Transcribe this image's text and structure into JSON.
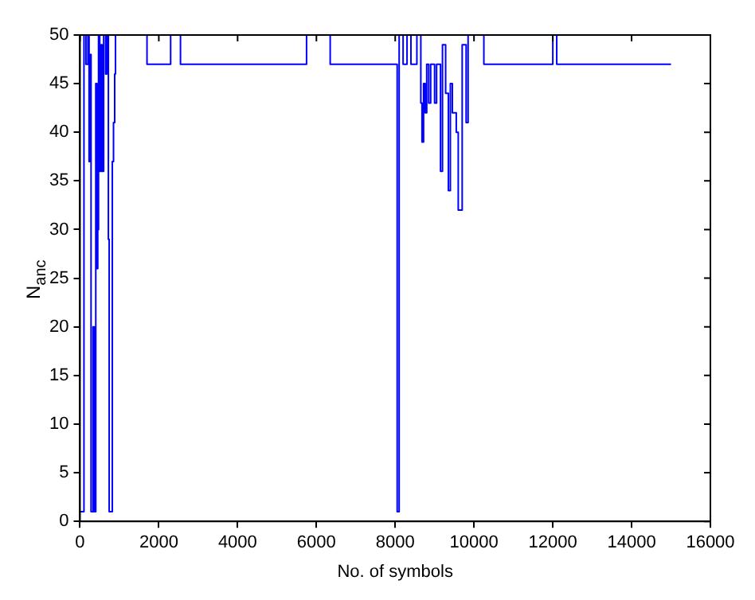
{
  "chart_data": {
    "type": "step",
    "xlabel": "No. of symbols",
    "ylabel": "N$_{anc}$",
    "xlim": [
      0,
      16000
    ],
    "xticks": [
      0,
      2000,
      4000,
      6000,
      8000,
      10000,
      12000,
      14000,
      16000
    ],
    "ylim": [
      0,
      50
    ],
    "yticks": [
      0,
      5,
      10,
      15,
      20,
      25,
      30,
      35,
      40,
      45,
      50
    ],
    "grid": false,
    "legend": false,
    "series": [
      {
        "color": "#0000ff",
        "x": [
          0,
          100,
          150,
          200,
          230,
          260,
          280,
          330,
          360,
          400,
          430,
          450,
          470,
          500,
          530,
          560,
          600,
          650,
          680,
          720,
          740,
          820,
          850,
          880,
          900,
          1700,
          2300,
          2550,
          5750,
          6350,
          8050,
          8100,
          8200,
          8300,
          8400,
          8550,
          8650,
          8680,
          8720,
          8760,
          8800,
          8850,
          8900,
          9000,
          9050,
          9150,
          9200,
          9280,
          9350,
          9400,
          9450,
          9550,
          9600,
          9700,
          9800,
          9850,
          10250,
          12000,
          12100,
          15000
        ],
        "values": [
          1,
          50,
          47,
          50,
          37,
          48,
          1,
          20,
          1,
          45,
          26,
          30,
          50,
          36,
          49,
          36,
          50,
          46,
          50,
          29,
          1,
          37,
          41,
          46,
          50,
          47,
          50,
          47,
          50,
          47,
          1,
          50,
          47,
          50,
          47,
          50,
          43,
          39,
          45,
          42,
          47,
          43,
          47,
          43,
          47,
          36,
          49,
          44,
          34,
          45,
          42,
          40,
          32,
          49,
          41,
          50,
          47,
          50,
          47,
          47
        ]
      }
    ]
  }
}
